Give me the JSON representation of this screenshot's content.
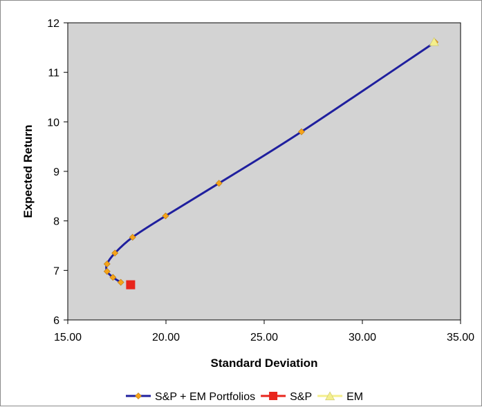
{
  "chart_data": {
    "type": "scatter",
    "xlabel": "Standard Deviation",
    "ylabel": "Expected Return",
    "xlim": [
      15,
      35
    ],
    "ylim": [
      6,
      12
    ],
    "x_ticks": [
      "15.00",
      "20.00",
      "25.00",
      "30.00",
      "35.00"
    ],
    "y_ticks": [
      "6",
      "7",
      "8",
      "9",
      "10",
      "11",
      "12"
    ],
    "grid": false,
    "plot_background": "#d3d3d3",
    "legend_position": "bottom",
    "series": [
      {
        "name": "S&P + EM Portfolios",
        "style": "line-with-markers",
        "line_color": "#1f1f9e",
        "marker_color": "#f5a31a",
        "marker": "diamond",
        "x": [
          17.7,
          17.3,
          17.0,
          17.0,
          17.4,
          18.3,
          19.98,
          22.7,
          26.9,
          33.7
        ],
        "y": [
          6.76,
          6.86,
          6.98,
          7.13,
          7.35,
          7.67,
          8.1,
          8.76,
          9.8,
          11.61
        ]
      },
      {
        "name": "S&P",
        "style": "marker",
        "marker": "square",
        "marker_color": "#e8251c",
        "x": [
          18.2
        ],
        "y": [
          6.71
        ]
      },
      {
        "name": "EM",
        "style": "marker",
        "marker": "triangle",
        "marker_color": "#f4ef8c",
        "x": [
          33.65
        ],
        "y": [
          11.62
        ]
      }
    ]
  }
}
